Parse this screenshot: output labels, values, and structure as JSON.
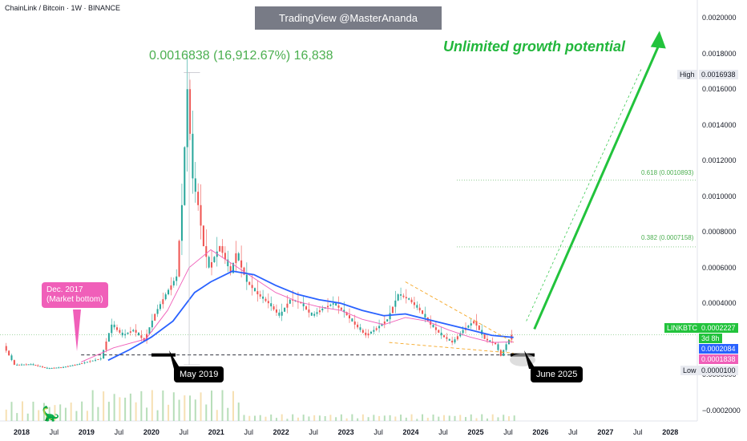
{
  "header": {
    "symbol_line": "ChainLink / Bitcoin · 1W · BINANCE",
    "watermark": "TradingView @MasterAnanda",
    "gain_label": "0.0016838 (16,912.67%) 16,838",
    "headline": "Unlimited growth potential"
  },
  "annotations": {
    "market_bottom": "Dec. 2017\n(Market bottom)",
    "may_2019": "May 2019",
    "june_2025": "June 2025",
    "fib_618": "0.618 (0.0010893)",
    "fib_382": "0.382 (0.0007158)"
  },
  "price_tags": {
    "high_label": "High",
    "high_value": "0.0016938",
    "symbol": "LINKBTC",
    "last_value": "0.0002227",
    "countdown": "3d 8h",
    "ma_blue_value": "0.0002084",
    "ma_pink_value": "0.0001838",
    "low_label": "Low",
    "low_value": "0.0000100"
  },
  "colors": {
    "up": "#26a69a",
    "down": "#ef5350",
    "gain_text": "#4caf50",
    "headline": "#22b73c",
    "ma_blue": "#2962ff",
    "ma_pink": "#f05fb9",
    "wedge": "#f5a623",
    "fib": "#4caf50"
  },
  "icons": {
    "logo": "tradingview-dino-icon"
  },
  "chart_data": {
    "type": "line",
    "title": "",
    "xlabel": "",
    "ylabel": "",
    "x_ticks": [
      "2018",
      "Jul",
      "2019",
      "Jul",
      "2020",
      "Jul",
      "2021",
      "Jul",
      "2022",
      "Jul",
      "2023",
      "Jul",
      "2024",
      "Jul",
      "2025",
      "Jul",
      "2026",
      "Jul",
      "2027",
      "Jul",
      "2028"
    ],
    "y_ticks": [
      "0.0020000",
      "0.0018000",
      "0.0016000",
      "0.0014000",
      "0.0012000",
      "0.0010000",
      "0.0008000",
      "0.0006000",
      "0.0004000",
      "0.0000000",
      "−0.0002000"
    ],
    "ylim": [
      -0.00026,
      0.0021
    ],
    "x_range": [
      "2017-09",
      "2028-06"
    ],
    "grid": false,
    "series": [
      {
        "x": [
          "2017-10",
          "2017-12",
          "2018-03",
          "2018-06",
          "2018-09",
          "2018-12",
          "2019-02",
          "2019-04",
          "2019-06",
          "2019-08",
          "2019-10",
          "2019-12",
          "2020-02",
          "2020-04",
          "2020-06",
          "2020-07",
          "2020-08",
          "2020-09",
          "2020-10",
          "2020-11",
          "2020-12",
          "2021-02",
          "2021-04",
          "2021-05",
          "2021-07",
          "2021-09",
          "2021-11",
          "2022-01",
          "2022-03",
          "2022-05",
          "2022-07",
          "2022-09",
          "2022-11",
          "2023-01",
          "2023-03",
          "2023-05",
          "2023-07",
          "2023-09",
          "2023-11",
          "2024-01",
          "2024-03",
          "2024-05",
          "2024-07",
          "2024-09",
          "2024-11",
          "2025-01",
          "2025-03",
          "2025-05",
          "2025-06",
          "2025-07",
          "2025-08"
        ],
        "values": [
          0.00016,
          5.5e-05,
          5.8e-05,
          3.5e-05,
          4.2e-05,
          6e-05,
          7.5e-05,
          9e-05,
          0.00028,
          0.00022,
          0.00025,
          0.00019,
          0.00034,
          0.00045,
          0.00055,
          0.00095,
          0.0016,
          0.0011,
          0.00095,
          0.00072,
          0.0006,
          0.00072,
          0.00057,
          0.00068,
          0.00052,
          0.00045,
          0.0004,
          0.00033,
          0.00042,
          0.0004,
          0.00033,
          0.00037,
          0.0004,
          0.00035,
          0.00028,
          0.00022,
          0.00026,
          0.00031,
          0.00045,
          0.00042,
          0.00036,
          0.00028,
          0.00022,
          0.00018,
          0.00025,
          0.0003,
          0.0002,
          0.00017,
          0.000105,
          0.00017,
          0.0002227
        ]
      },
      {
        "name": "",
        "x": [
          "2019-05",
          "2019-09",
          "2020-01",
          "2020-05",
          "2020-09",
          "2020-12",
          "2021-04",
          "2021-08",
          "2021-12",
          "2022-04",
          "2022-08",
          "2022-12",
          "2023-04",
          "2023-08",
          "2023-12",
          "2024-04",
          "2024-08",
          "2024-12",
          "2025-04",
          "2025-08"
        ],
        "values": [
          8e-05,
          0.00014,
          0.00021,
          0.0003,
          0.00046,
          0.00052,
          0.00058,
          0.00056,
          0.0005,
          0.00045,
          0.00042,
          0.0004,
          0.00036,
          0.00033,
          0.00034,
          0.00031,
          0.00028,
          0.00025,
          0.00022,
          0.0002084
        ]
      },
      {
        "name": "",
        "x": [
          "2018-12",
          "2019-06",
          "2019-12",
          "2020-04",
          "2020-08",
          "2020-12",
          "2021-04",
          "2021-08",
          "2021-12",
          "2022-04",
          "2022-08",
          "2022-12",
          "2023-04",
          "2023-08",
          "2023-12",
          "2024-04",
          "2024-08",
          "2024-12",
          "2025-04",
          "2025-08"
        ],
        "values": [
          7e-05,
          0.00015,
          0.0002,
          0.00036,
          0.0006,
          0.0007,
          0.00062,
          0.00054,
          0.00046,
          0.00041,
          0.00038,
          0.00036,
          0.00031,
          0.00028,
          0.00032,
          0.0003,
          0.00025,
          0.00021,
          0.00018,
          0.0001838
        ]
      }
    ],
    "projection": {
      "from": {
        "x": "2025-08",
        "y": 0.00021
      },
      "to": {
        "x": "2027-11",
        "y": 0.0019
      }
    },
    "support_level": 0.00011,
    "fib_levels": [
      0.0010893,
      0.0007158
    ],
    "current_price": 0.0002227,
    "high": 0.0016938,
    "low": 1e-05
  }
}
